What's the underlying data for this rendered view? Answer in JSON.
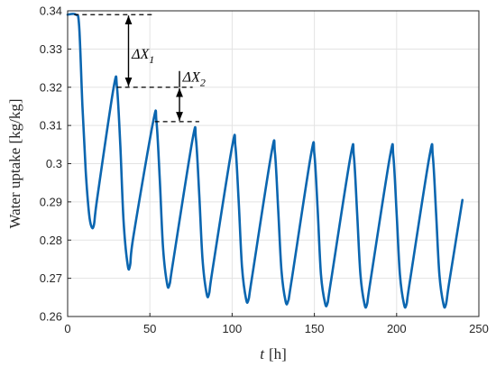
{
  "chart_data": {
    "type": "line",
    "xlabel_italic": "t",
    "xlabel_unit": "[h]",
    "ylabel": "Water uptake [kg/kg]",
    "xlim": [
      0,
      250
    ],
    "ylim": [
      0.26,
      0.34
    ],
    "xticks": [
      0,
      50,
      100,
      150,
      200,
      250
    ],
    "yticks": [
      0.26,
      0.27,
      0.28,
      0.29,
      0.3,
      0.31,
      0.32,
      0.33,
      0.34
    ],
    "ytick_labels": [
      "0.26",
      "0.27",
      "0.28",
      "0.29",
      "0.3",
      "0.31",
      "0.32",
      "0.33",
      "0.34"
    ],
    "grid": true,
    "series": [
      {
        "color": "#0b66b0",
        "x": [
          0,
          5,
          7,
          9,
          11,
          13,
          14.5,
          16,
          18,
          28,
          30,
          32,
          34,
          36.5,
          38,
          40,
          52,
          54,
          56,
          58,
          60.5,
          62,
          64,
          76,
          78,
          80,
          82,
          84.5,
          86,
          88,
          100,
          102,
          104,
          106,
          108.5,
          110,
          112,
          124,
          126,
          128,
          130,
          132.5,
          134,
          136,
          148,
          150,
          152,
          154,
          156.5,
          158,
          160,
          172,
          174,
          176,
          178,
          180.5,
          182,
          184,
          196,
          198,
          200,
          202,
          204.5,
          206,
          208,
          220,
          222,
          224,
          226,
          228.5,
          230,
          232,
          240
        ],
        "y": [
          0.339,
          0.339,
          0.336,
          0.315,
          0.298,
          0.287,
          0.2835,
          0.284,
          0.291,
          0.32,
          0.32,
          0.305,
          0.285,
          0.2735,
          0.2735,
          0.281,
          0.311,
          0.311,
          0.296,
          0.278,
          0.2685,
          0.2685,
          0.274,
          0.3065,
          0.3065,
          0.292,
          0.275,
          0.266,
          0.266,
          0.272,
          0.3045,
          0.3045,
          0.29,
          0.273,
          0.2645,
          0.2645,
          0.27,
          0.303,
          0.303,
          0.288,
          0.272,
          0.264,
          0.264,
          0.269,
          0.3025,
          0.3025,
          0.288,
          0.271,
          0.2635,
          0.2635,
          0.269,
          0.302,
          0.302,
          0.287,
          0.271,
          0.2632,
          0.2632,
          0.269,
          0.302,
          0.302,
          0.287,
          0.271,
          0.2632,
          0.2632,
          0.269,
          0.302,
          0.302,
          0.287,
          0.271,
          0.2632,
          0.2632,
          0.269,
          0.2905
        ]
      }
    ],
    "annotations": [
      {
        "label": "ΔX",
        "subscript": "1"
      },
      {
        "label": "ΔX",
        "subscript": "2"
      }
    ]
  }
}
